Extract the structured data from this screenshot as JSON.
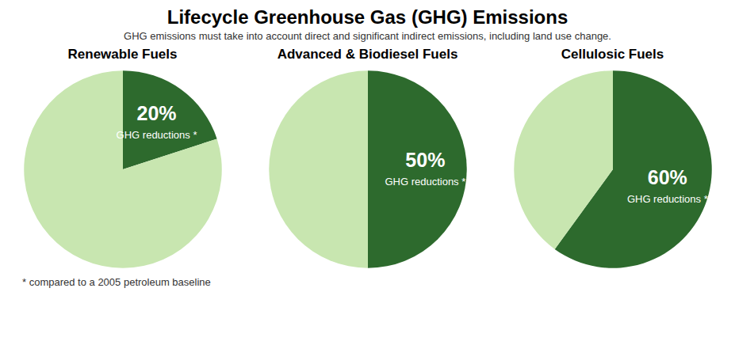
{
  "title": "Lifecycle Greenhouse Gas (GHG) Emissions",
  "subtitle": "GHG emissions must take into account direct and significant indirect emissions, including land use change.",
  "annotations": [
    "* compared to a 2005 petroleum baseline"
  ],
  "chart_data": [
    {
      "type": "pie",
      "title": "Renewable Fuels",
      "categories": [
        "GHG reductions *",
        null
      ],
      "values": [
        20,
        80
      ],
      "value_labels": [
        "20%",
        null
      ],
      "data_labels": true,
      "colors": [
        "#2d6a2d",
        "#c8e6b0"
      ]
    },
    {
      "type": "pie",
      "title": "Advanced & Biodiesel Fuels",
      "categories": [
        "GHG reductions *",
        null
      ],
      "values": [
        50,
        50
      ],
      "value_labels": [
        "50%",
        null
      ],
      "data_labels": true,
      "colors": [
        "#2d6a2d",
        "#c8e6b0"
      ]
    },
    {
      "type": "pie",
      "title": "Cellulosic Fuels",
      "categories": [
        "GHG reductions *",
        null
      ],
      "values": [
        60,
        40
      ],
      "value_labels": [
        "60%",
        null
      ],
      "data_labels": true,
      "colors": [
        "#2d6a2d",
        "#c8e6b0"
      ]
    }
  ]
}
